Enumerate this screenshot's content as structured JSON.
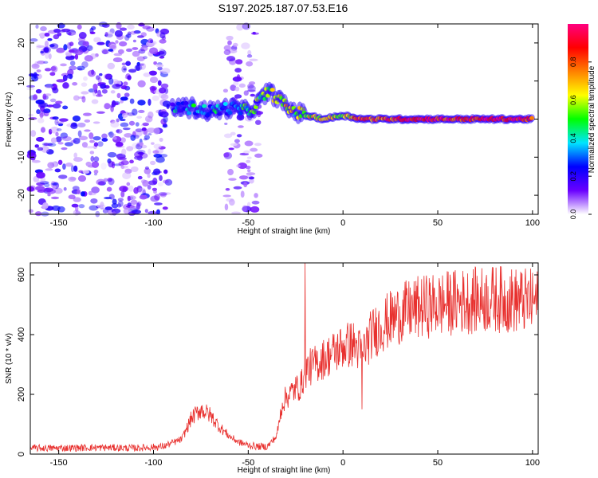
{
  "title": "S197.2025.187.07.53.E16",
  "colors": {
    "snr_line": "#e8302e",
    "axis": "#000000",
    "background": "#ffffff"
  },
  "chart_data": [
    {
      "type": "heatmap",
      "xlabel": "Height of straight line (km)",
      "ylabel": "Frequency (Hz)",
      "xlim": [
        -165,
        103
      ],
      "ylim": [
        -25,
        25
      ],
      "x_ticks": [
        -150,
        -100,
        -50,
        0,
        50,
        100
      ],
      "y_ticks": [
        -20,
        -10,
        0,
        10,
        20
      ],
      "colorbar": {
        "label": "Normalized spectral amplitude",
        "range": [
          0,
          1
        ],
        "ticks": [
          "0.0",
          "0.2",
          "0.4",
          "0.6",
          "0.8"
        ],
        "stops": [
          "#ffffff",
          "#6a00ff",
          "#0000ff",
          "#00e5ff",
          "#00ff00",
          "#ffff00",
          "#ff8000",
          "#ff0000",
          "#ff0080"
        ]
      },
      "ridge": {
        "x": [
          -90,
          -80,
          -70,
          -60,
          -50,
          -45,
          -40,
          -35,
          -30,
          -25,
          -20,
          -10,
          0,
          10,
          20,
          30,
          40,
          50,
          60,
          70,
          80,
          90,
          100
        ],
        "frequency": [
          3,
          3,
          2,
          3,
          2,
          4,
          7,
          6,
          3,
          2,
          1,
          0,
          1,
          0,
          0,
          0,
          0,
          0,
          0,
          0,
          0,
          0,
          0
        ],
        "amplitude": [
          0.3,
          0.35,
          0.35,
          0.3,
          0.45,
          0.5,
          0.6,
          0.6,
          0.7,
          0.5,
          0.6,
          0.7,
          0.6,
          0.85,
          0.8,
          0.9,
          0.9,
          0.9,
          0.85,
          0.9,
          0.9,
          0.9,
          0.9
        ]
      },
      "noise_regions": [
        {
          "x": [
            -165,
            -92
          ],
          "freq": [
            -25,
            25
          ],
          "level": 0.15
        },
        {
          "x": [
            -62,
            -44
          ],
          "freq": [
            -25,
            25
          ],
          "level": 0.1
        }
      ]
    },
    {
      "type": "line",
      "xlabel": "Height of straight line (km)",
      "ylabel": "SNR (10 * v/v)",
      "xlim": [
        -165,
        103
      ],
      "ylim": [
        0,
        640
      ],
      "x_ticks": [
        -150,
        -100,
        -50,
        0,
        50,
        100
      ],
      "y_ticks": [
        0,
        200,
        400,
        600
      ],
      "series": [
        {
          "x": [
            -165,
            -150,
            -130,
            -110,
            -95,
            -85,
            -80,
            -75,
            -70,
            -65,
            -60,
            -55,
            -50,
            -45,
            -40,
            -35,
            -32,
            -30,
            -25,
            -22,
            -20,
            -15,
            -10,
            -5,
            0,
            5,
            10,
            15,
            20,
            30,
            40,
            50,
            60,
            70,
            80,
            90,
            100,
            103
          ],
          "y": [
            20,
            20,
            22,
            20,
            25,
            50,
            120,
            150,
            130,
            90,
            60,
            40,
            30,
            25,
            25,
            60,
            170,
            190,
            220,
            230,
            280,
            300,
            320,
            340,
            360,
            370,
            340,
            400,
            430,
            470,
            490,
            500,
            510,
            515,
            520,
            515,
            510,
            510
          ],
          "spikes": [
            {
              "x": -20,
              "y": 640
            },
            {
              "x": 10,
              "y": 150
            }
          ]
        }
      ]
    }
  ]
}
